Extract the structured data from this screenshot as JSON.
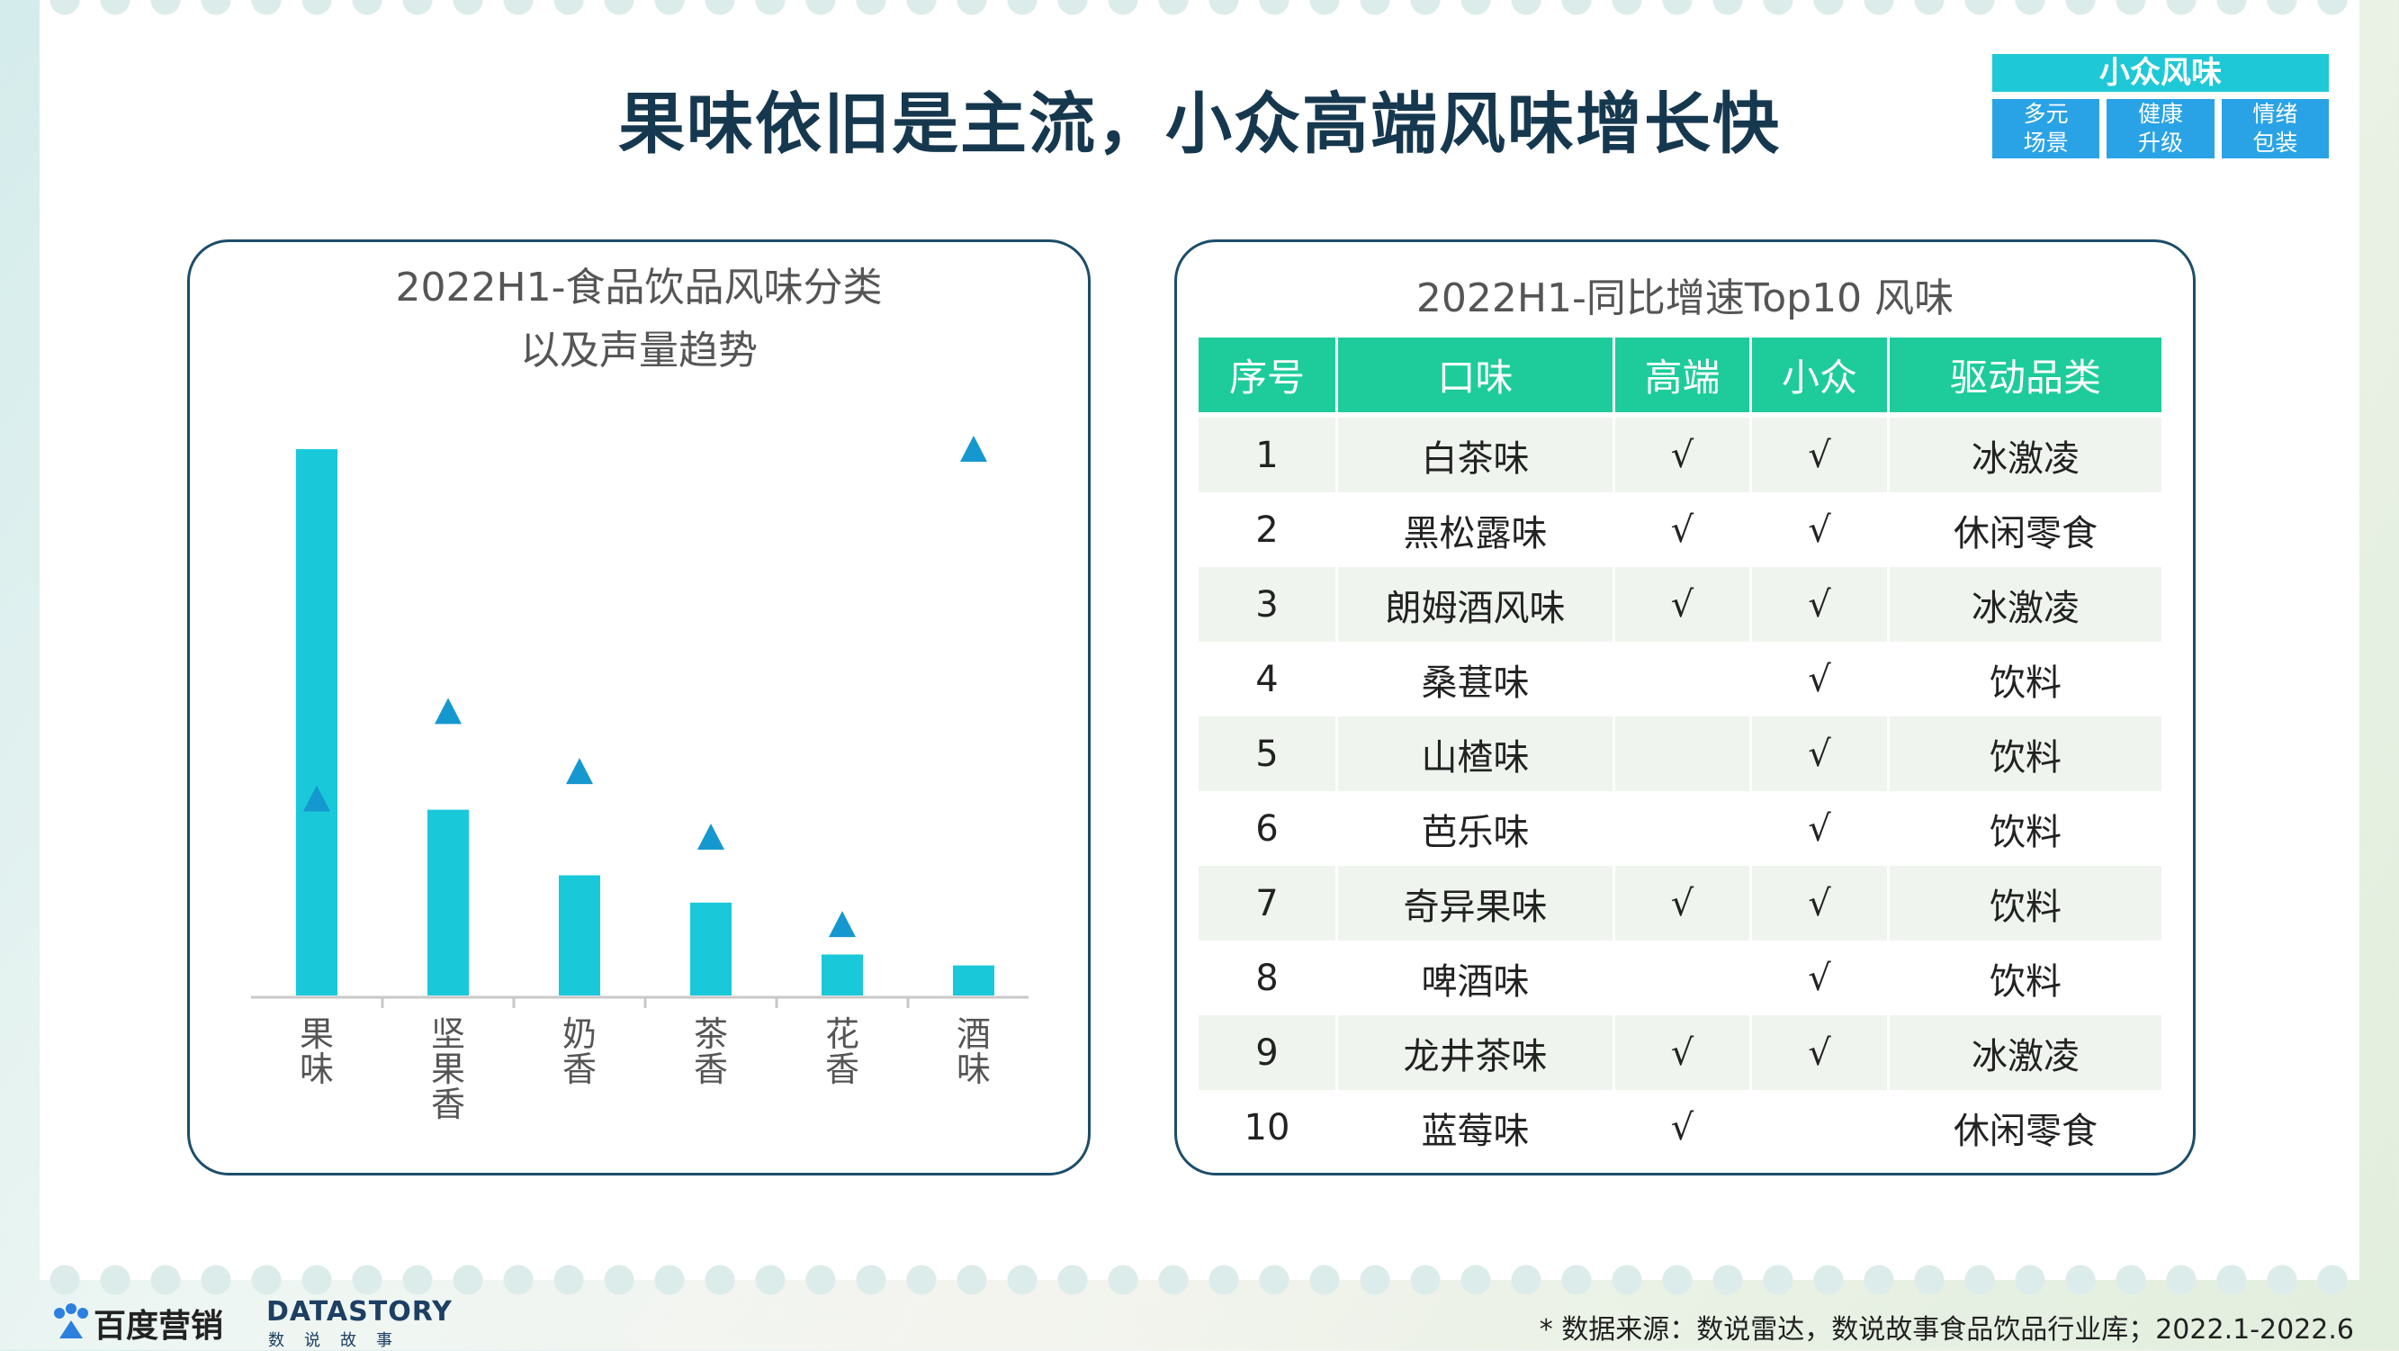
{
  "slide": {
    "title": "果味依旧是主流，小众高端风味增长快"
  },
  "tag_box": {
    "header": "小众风味",
    "items": [
      {
        "line1": "多元",
        "line2": "场景"
      },
      {
        "line1": "健康",
        "line2": "升级"
      },
      {
        "line1": "情绪",
        "line2": "包装"
      }
    ]
  },
  "chart_data": {
    "type": "bar",
    "title_line1": "2022H1-食品饮品风味分类",
    "title_line2": "以及声量趋势",
    "categories": [
      "果味",
      "坚果香",
      "奶香",
      "茶香",
      "花香",
      "酒味"
    ],
    "series": [
      {
        "values": [
          100,
          34,
          22,
          17,
          7.5,
          5.5
        ],
        "mark": "bar",
        "color": "#19c9d9"
      },
      {
        "values": [
          36,
          52,
          41,
          29,
          13,
          100
        ],
        "mark": "triangle",
        "color": "#1598cf"
      }
    ],
    "ylim": [
      0,
      105
    ],
    "grid": false,
    "legend": false,
    "xlabel": "",
    "ylabel": ""
  },
  "table": {
    "title": "2022H1-同比增速Top10 风味",
    "headers": [
      "序号",
      "口味",
      "高端",
      "小众",
      "驱动品类"
    ],
    "rows": [
      [
        "1",
        "白茶味",
        "√",
        "√",
        "冰激凌"
      ],
      [
        "2",
        "黑松露味",
        "√",
        "√",
        "休闲零食"
      ],
      [
        "3",
        "朗姆酒风味",
        "√",
        "√",
        "冰激凌"
      ],
      [
        "4",
        "桑葚味",
        "",
        "√",
        "饮料"
      ],
      [
        "5",
        "山楂味",
        "",
        "√",
        "饮料"
      ],
      [
        "6",
        "芭乐味",
        "",
        "√",
        "饮料"
      ],
      [
        "7",
        "奇异果味",
        "√",
        "√",
        "饮料"
      ],
      [
        "8",
        "啤酒味",
        "",
        "√",
        "饮料"
      ],
      [
        "9",
        "龙井茶味",
        "√",
        "√",
        "冰激凌"
      ],
      [
        "10",
        "蓝莓味",
        "√",
        "",
        "休闲零食"
      ]
    ],
    "header_color": "#1dcc9a",
    "stripe_color": "#eff5ee"
  },
  "footer": {
    "brand1": "百度营销",
    "brand2": "DATASTORY",
    "brand2_sub": "数说故事",
    "source": "* 数据来源：数说雷达，数说故事食品饮品行业库；2022.1-2022.6"
  }
}
